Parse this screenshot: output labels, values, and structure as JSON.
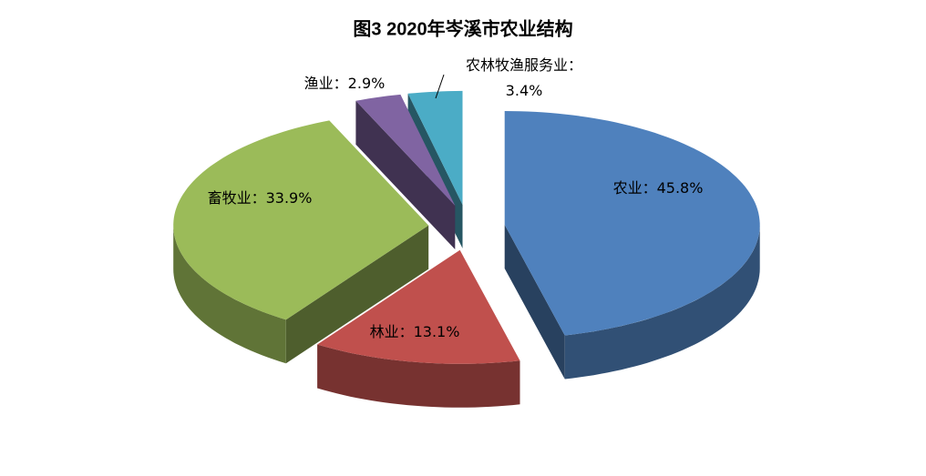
{
  "chart_data": {
    "type": "pie3d",
    "title": "图3  2020年岑溪市农业结构",
    "categories": [
      "农业：",
      "林业：",
      "畜牧业：",
      "渔业：",
      "农林牧渔服务业："
    ],
    "values": [
      45.8,
      13.1,
      33.9,
      2.9,
      3.4
    ],
    "value_labels": [
      "45.8%",
      "13.1%",
      "33.9%",
      "2.9%",
      "3.4%"
    ],
    "colors": [
      "#4f81bd",
      "#c0504d",
      "#9bbb59",
      "#8064a2",
      "#4bacc6"
    ]
  }
}
